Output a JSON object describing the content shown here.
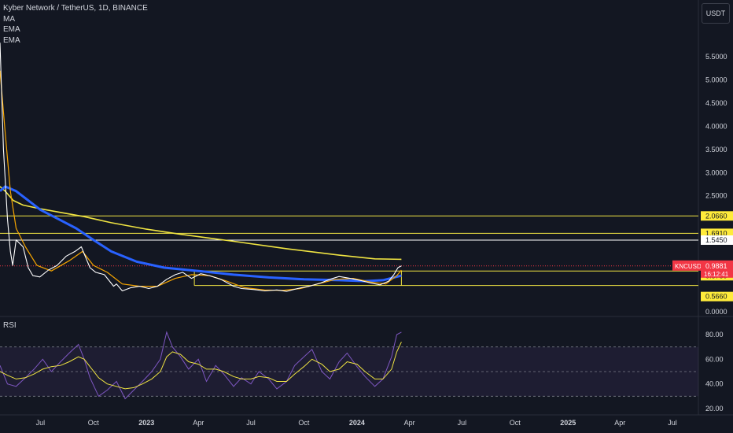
{
  "legend": {
    "title": "Kyber Network / TetherUS, 1D, BINANCE",
    "indicators": [
      "MA",
      "EMA",
      "EMA"
    ]
  },
  "unit_button": "USDT",
  "rsi_label": "RSI",
  "colors": {
    "background": "#131722",
    "price_line": "#ffffff",
    "ma_line": "#f0e442",
    "ema_long": "#2962ff",
    "ema_short": "#f7a600",
    "level_line": "#f0e442",
    "rsi_line": "#7e57c2",
    "rsi_ma": "#f0e442",
    "ticker_badge": "#f23645",
    "level_badge": "#ffeb3b"
  },
  "chart_data": {
    "type": "line",
    "price_axis": {
      "ticks": [
        {
          "label": "5.5000",
          "value": 5.5
        },
        {
          "label": "5.0000",
          "value": 5.0
        },
        {
          "label": "4.5000",
          "value": 4.5
        },
        {
          "label": "4.0000",
          "value": 4.0
        },
        {
          "label": "3.5000",
          "value": 3.5
        },
        {
          "label": "3.0000",
          "value": 3.0
        },
        {
          "label": "2.5000",
          "value": 2.5
        },
        {
          "label": "0.0000",
          "value": 0.0
        }
      ],
      "ylim": [
        0,
        6.4
      ]
    },
    "time_axis": {
      "ticks": [
        {
          "label": "Jul",
          "date": "2022-07-01",
          "bold": false
        },
        {
          "label": "Oct",
          "date": "2022-10-01",
          "bold": false
        },
        {
          "label": "2023",
          "date": "2023-01-01",
          "bold": true
        },
        {
          "label": "Apr",
          "date": "2023-04-01",
          "bold": false
        },
        {
          "label": "Jul",
          "date": "2023-07-01",
          "bold": false
        },
        {
          "label": "Oct",
          "date": "2023-10-01",
          "bold": false
        },
        {
          "label": "2024",
          "date": "2024-01-01",
          "bold": true
        },
        {
          "label": "Apr",
          "date": "2024-04-01",
          "bold": false
        },
        {
          "label": "Jul",
          "date": "2024-07-01",
          "bold": false
        },
        {
          "label": "Oct",
          "date": "2024-10-01",
          "bold": false
        },
        {
          "label": "2025",
          "date": "2025-01-01",
          "bold": true
        },
        {
          "label": "Apr",
          "date": "2025-04-01",
          "bold": false
        },
        {
          "label": "Jul",
          "date": "2025-07-01",
          "bold": false
        }
      ],
      "xlim": [
        "2022-04-22",
        "2025-08-15"
      ]
    },
    "levels": [
      {
        "value": 2.066,
        "label": "2.0660",
        "color": "#f0e442",
        "badge": "#ffeb3b"
      },
      {
        "value": 1.691,
        "label": "1.6910",
        "color": "#f0e442",
        "badge": "#ffeb3b"
      },
      {
        "value": 1.545,
        "label": "1.5450",
        "color": "#ffffff",
        "badge": "#ffffff"
      },
      {
        "value": 0.878,
        "label": "0.8780",
        "color": "#f0e442",
        "badge": "#ffeb3b"
      },
      {
        "value": 0.566,
        "label": "0.5660",
        "color": "#f0e442",
        "badge": "#ffeb3b"
      }
    ],
    "current_price": {
      "ticker": "KNCUSDT",
      "value": 0.9881,
      "label": "0.9881",
      "countdown": "16:12:41"
    },
    "series": [
      {
        "key": "price",
        "dates": [
          "2022-04-22",
          "2022-04-28",
          "2022-05-05",
          "2022-05-10",
          "2022-05-14",
          "2022-05-20",
          "2022-06-01",
          "2022-06-10",
          "2022-06-18",
          "2022-06-30",
          "2022-07-15",
          "2022-07-30",
          "2022-08-15",
          "2022-08-30",
          "2022-09-10",
          "2022-09-20",
          "2022-09-25",
          "2022-10-05",
          "2022-10-20",
          "2022-11-05",
          "2022-11-10",
          "2022-11-20",
          "2022-12-05",
          "2022-12-20",
          "2023-01-05",
          "2023-01-20",
          "2023-02-05",
          "2023-02-20",
          "2023-03-05",
          "2023-03-20",
          "2023-04-05",
          "2023-04-20",
          "2023-05-10",
          "2023-06-01",
          "2023-06-15",
          "2023-07-05",
          "2023-07-25",
          "2023-08-15",
          "2023-09-01",
          "2023-09-20",
          "2023-10-10",
          "2023-10-30",
          "2023-11-15",
          "2023-12-01",
          "2023-12-20",
          "2024-01-05",
          "2024-01-25",
          "2024-02-10",
          "2024-02-25",
          "2024-03-05",
          "2024-03-12",
          "2024-03-18"
        ],
        "values": [
          5.8,
          3.5,
          2.0,
          1.3,
          1.0,
          1.55,
          1.4,
          0.95,
          0.78,
          0.75,
          0.9,
          1.0,
          1.2,
          1.3,
          1.4,
          1.1,
          0.95,
          0.85,
          0.8,
          0.55,
          0.6,
          0.45,
          0.52,
          0.55,
          0.5,
          0.55,
          0.7,
          0.8,
          0.85,
          0.72,
          0.82,
          0.78,
          0.7,
          0.55,
          0.5,
          0.48,
          0.45,
          0.47,
          0.44,
          0.5,
          0.55,
          0.62,
          0.7,
          0.76,
          0.72,
          0.68,
          0.62,
          0.58,
          0.66,
          0.8,
          0.95,
          0.99
        ]
      },
      {
        "key": "ma",
        "dates": [
          "2022-04-22",
          "2022-05-01",
          "2022-05-15",
          "2022-06-01",
          "2022-07-01",
          "2022-08-01",
          "2022-09-15",
          "2022-11-01",
          "2023-01-01",
          "2023-03-01",
          "2023-06-01",
          "2023-09-01",
          "2023-12-01",
          "2024-02-01",
          "2024-03-18"
        ],
        "values": [
          2.7,
          2.6,
          2.4,
          2.3,
          2.22,
          2.15,
          2.05,
          1.92,
          1.78,
          1.67,
          1.52,
          1.36,
          1.22,
          1.14,
          1.13
        ]
      },
      {
        "key": "ema_long",
        "dates": [
          "2022-04-22",
          "2022-05-01",
          "2022-05-20",
          "2022-06-10",
          "2022-07-01",
          "2022-08-01",
          "2022-09-01",
          "2022-10-01",
          "2022-11-01",
          "2022-12-15",
          "2023-02-01",
          "2023-04-01",
          "2023-06-01",
          "2023-08-01",
          "2023-10-01",
          "2023-12-01",
          "2024-01-15",
          "2024-02-15",
          "2024-03-18"
        ],
        "values": [
          2.6,
          2.7,
          2.6,
          2.4,
          2.2,
          2.0,
          1.8,
          1.55,
          1.3,
          1.08,
          0.95,
          0.88,
          0.8,
          0.74,
          0.7,
          0.68,
          0.66,
          0.68,
          0.78
        ]
      },
      {
        "key": "ema_short",
        "dates": [
          "2022-04-22",
          "2022-04-30",
          "2022-05-10",
          "2022-05-20",
          "2022-06-05",
          "2022-06-25",
          "2022-07-20",
          "2022-08-20",
          "2022-09-12",
          "2022-10-01",
          "2022-10-25",
          "2022-11-20",
          "2022-12-20",
          "2023-01-20",
          "2023-02-20",
          "2023-03-20",
          "2023-04-20",
          "2023-05-20",
          "2023-06-20",
          "2023-07-25",
          "2023-08-25",
          "2023-09-25",
          "2023-10-25",
          "2023-11-25",
          "2023-12-25",
          "2024-01-25",
          "2024-02-20",
          "2024-03-10",
          "2024-03-18"
        ],
        "values": [
          5.2,
          4.0,
          2.6,
          1.8,
          1.4,
          1.0,
          0.88,
          1.1,
          1.3,
          1.0,
          0.85,
          0.6,
          0.55,
          0.55,
          0.72,
          0.8,
          0.78,
          0.66,
          0.52,
          0.47,
          0.46,
          0.5,
          0.6,
          0.7,
          0.72,
          0.64,
          0.6,
          0.78,
          0.9
        ]
      }
    ],
    "rsi": {
      "label": "RSI",
      "ticks": [
        {
          "label": "80.00",
          "value": 80
        },
        {
          "label": "60.00",
          "value": 60
        },
        {
          "label": "40.00",
          "value": 40
        },
        {
          "label": "20.00",
          "value": 20
        }
      ],
      "ylim": [
        14,
        91
      ],
      "band": [
        30,
        70
      ],
      "mid": 50,
      "dates": [
        "2022-04-22",
        "2022-05-05",
        "2022-05-20",
        "2022-06-05",
        "2022-06-20",
        "2022-07-05",
        "2022-07-20",
        "2022-08-05",
        "2022-08-20",
        "2022-09-05",
        "2022-09-15",
        "2022-09-25",
        "2022-10-10",
        "2022-10-25",
        "2022-11-10",
        "2022-11-25",
        "2022-12-10",
        "2022-12-25",
        "2023-01-10",
        "2023-01-25",
        "2023-02-05",
        "2023-02-15",
        "2023-03-01",
        "2023-03-15",
        "2023-04-01",
        "2023-04-15",
        "2023-05-01",
        "2023-05-15",
        "2023-06-01",
        "2023-06-15",
        "2023-07-01",
        "2023-07-15",
        "2023-08-01",
        "2023-08-15",
        "2023-09-01",
        "2023-09-15",
        "2023-10-01",
        "2023-10-15",
        "2023-11-01",
        "2023-11-15",
        "2023-12-01",
        "2023-12-15",
        "2024-01-01",
        "2024-01-15",
        "2024-02-01",
        "2024-02-15",
        "2024-03-01",
        "2024-03-10",
        "2024-03-18"
      ],
      "values": [
        55,
        40,
        38,
        45,
        52,
        60,
        50,
        58,
        65,
        72,
        60,
        45,
        30,
        35,
        42,
        28,
        35,
        42,
        50,
        60,
        82,
        70,
        62,
        52,
        60,
        42,
        55,
        48,
        38,
        45,
        40,
        50,
        44,
        36,
        42,
        55,
        62,
        68,
        50,
        44,
        58,
        65,
        54,
        46,
        38,
        44,
        62,
        80,
        82
      ],
      "ma_values": [
        50,
        47,
        44,
        45,
        48,
        52,
        54,
        55,
        58,
        62,
        60,
        54,
        45,
        40,
        38,
        36,
        37,
        40,
        44,
        50,
        62,
        66,
        64,
        58,
        56,
        52,
        52,
        50,
        46,
        44,
        44,
        46,
        45,
        42,
        42,
        48,
        54,
        60,
        56,
        50,
        52,
        58,
        56,
        50,
        44,
        44,
        52,
        66,
        74
      ]
    }
  }
}
